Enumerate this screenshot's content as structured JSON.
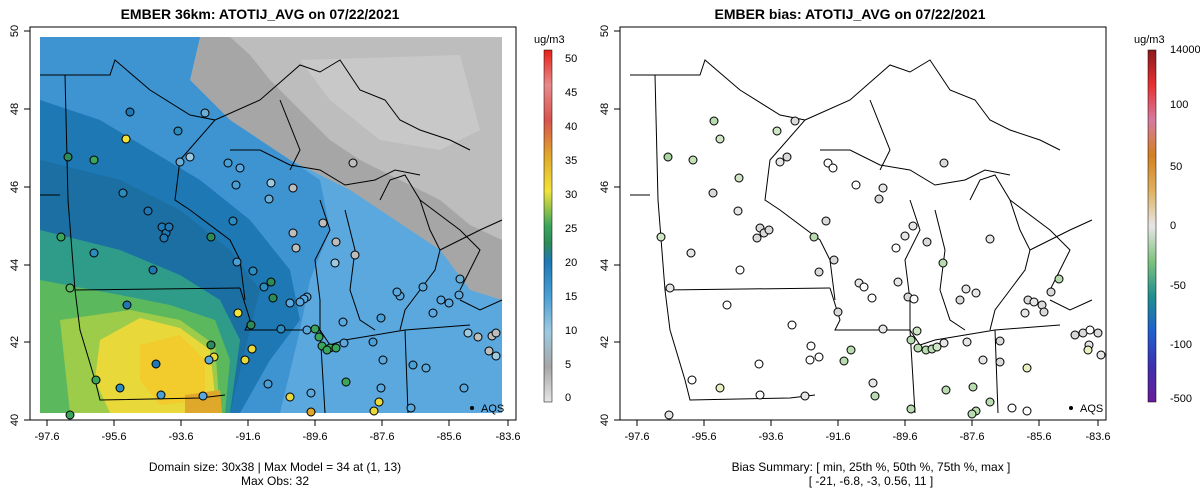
{
  "left_panel": {
    "title": "EMBER 36km: ATOTIJ_AVG on 07/22/2021",
    "caption_line1": "Domain size: 30x38 | Max Model = 34 at (1, 13)",
    "caption_line2": "Max Obs: 32",
    "legend_unit": "ug/m3",
    "legend_ticks": [
      "0",
      "5",
      "10",
      "15",
      "20",
      "25",
      "30",
      "35",
      "40",
      "45",
      "50"
    ],
    "aqs_label": "AQS"
  },
  "right_panel": {
    "title": "EMBER bias: ATOTIJ_AVG on 07/22/2021",
    "caption_line1": "Bias Summary: [ min, 25th %, 50th %, 75th %, max ]",
    "caption_line2": "[ -21,   -6.8,   -3,   0.56,   11 ]",
    "legend_unit": "ug/m3",
    "legend_ticks": [
      "-500",
      "-100",
      "-50",
      "0",
      "50",
      "100",
      "14000"
    ],
    "aqs_label": "AQS"
  },
  "axes": {
    "x_ticks": [
      "-97.6",
      "-95.6",
      "-93.6",
      "-91.6",
      "-89.6",
      "-87.6",
      "-85.6",
      "-83.6"
    ],
    "y_ticks": [
      "40",
      "42",
      "44",
      "46",
      "48",
      "50"
    ]
  },
  "colors": {
    "map_high": "#f2dd3a",
    "map_mid": "#1a7fb5",
    "map_low_blue": "#6ab3e0",
    "map_gray": "#a9a9a9",
    "bias_zero": "#d9d9d9",
    "bias_neg": "#7fc27f"
  }
}
